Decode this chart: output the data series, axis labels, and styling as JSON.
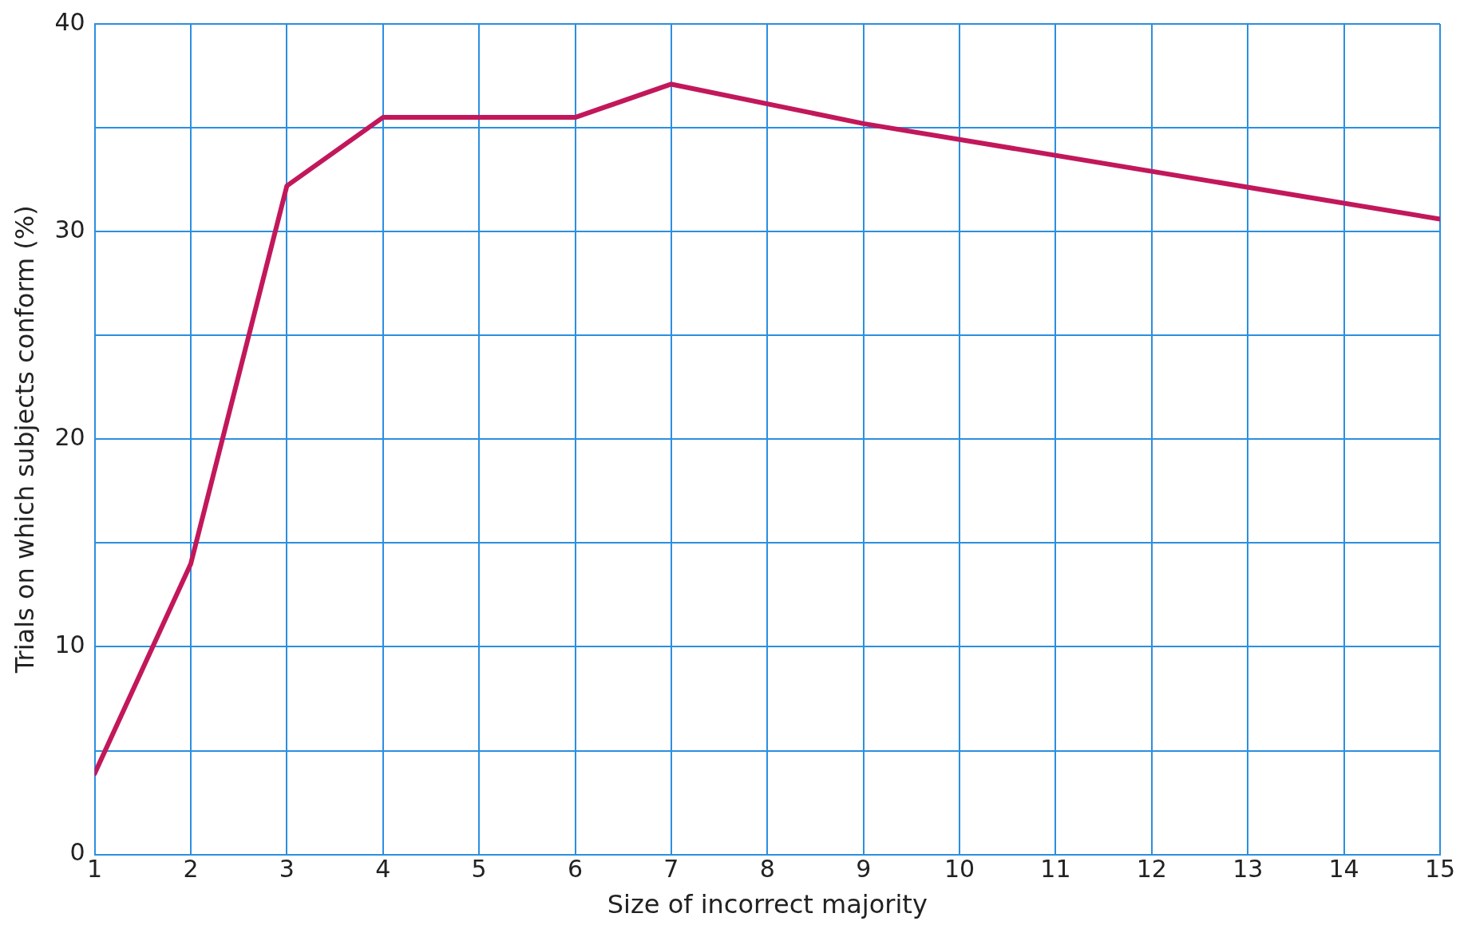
{
  "chart_data": {
    "type": "line",
    "xlabel": "Size of incorrect majority",
    "ylabel": "Trials on which subjects conform (%)",
    "x": [
      1,
      2,
      3,
      4,
      6,
      7,
      9,
      15
    ],
    "series": [
      {
        "color": "#c2185b",
        "values": [
          3.9,
          14.0,
          32.2,
          35.5,
          35.5,
          37.1,
          35.2,
          30.6
        ]
      }
    ],
    "xlim": [
      1,
      15
    ],
    "xticks": [
      1,
      2,
      3,
      4,
      5,
      6,
      7,
      8,
      9,
      10,
      11,
      12,
      13,
      14,
      15
    ],
    "ylim": [
      0,
      40
    ],
    "yticks": [
      0,
      {
        "value": 5,
        "label": null
      },
      10,
      {
        "value": 15,
        "label": null
      },
      20,
      {
        "value": 25,
        "label": null
      },
      30,
      {
        "value": 35,
        "label": null
      },
      40
    ],
    "grid": true,
    "legend": false,
    "marker": "none",
    "line_style": "solid"
  }
}
